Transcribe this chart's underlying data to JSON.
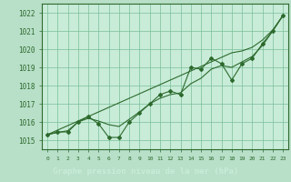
{
  "xlabel": "Graphe pression niveau de la mer (hPa)",
  "bg_color": "#b8dfc8",
  "plot_bg_color": "#c8ecd8",
  "grid_color": "#7abf9a",
  "line_color": "#2d6a2d",
  "label_bg_color": "#2d6a2d",
  "label_text_color": "#c8ecd8",
  "xlim": [
    -0.5,
    23.5
  ],
  "ylim": [
    1014.5,
    1022.5
  ],
  "yticks": [
    1015,
    1016,
    1017,
    1018,
    1019,
    1020,
    1021,
    1022
  ],
  "xticks": [
    0,
    1,
    2,
    3,
    4,
    5,
    6,
    7,
    8,
    9,
    10,
    11,
    12,
    13,
    14,
    15,
    16,
    17,
    18,
    19,
    20,
    21,
    22,
    23
  ],
  "measured": [
    1015.3,
    1015.45,
    1015.45,
    1016.0,
    1016.3,
    1015.9,
    1015.15,
    1015.15,
    1016.0,
    1016.5,
    1017.0,
    1017.5,
    1017.7,
    1017.5,
    1019.0,
    1018.9,
    1019.5,
    1019.2,
    1018.3,
    1019.2,
    1019.5,
    1020.3,
    1021.0,
    1021.85
  ],
  "smooth": [
    1015.3,
    1015.42,
    1015.52,
    1016.0,
    1016.2,
    1016.05,
    1015.85,
    1015.75,
    1016.15,
    1016.55,
    1017.0,
    1017.3,
    1017.5,
    1017.6,
    1018.1,
    1018.4,
    1018.9,
    1019.1,
    1019.0,
    1019.3,
    1019.6,
    1020.2,
    1021.0,
    1021.85
  ],
  "trend": [
    1015.3,
    1015.55,
    1015.8,
    1016.05,
    1016.3,
    1016.55,
    1016.8,
    1017.05,
    1017.3,
    1017.55,
    1017.8,
    1018.05,
    1018.3,
    1018.55,
    1018.8,
    1019.05,
    1019.3,
    1019.55,
    1019.8,
    1019.9,
    1020.1,
    1020.5,
    1021.05,
    1021.85
  ]
}
